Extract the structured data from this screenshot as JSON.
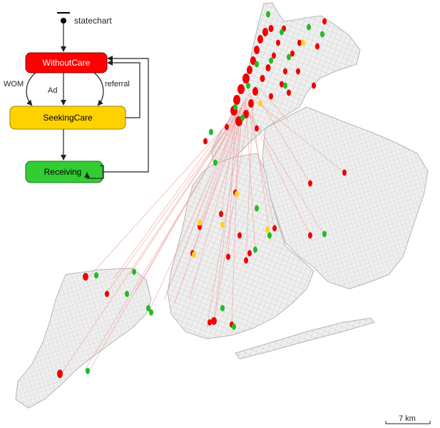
{
  "statechart": {
    "title": "statechart",
    "states": [
      {
        "id": "without",
        "label": "WithoutCare",
        "color": "#ff0000",
        "text_color": "#ffffff"
      },
      {
        "id": "seeking",
        "label": "SeekingCare",
        "color": "#ffd200",
        "text_color": "#000000"
      },
      {
        "id": "receiving",
        "label": "Receiving",
        "color": "#33cc33",
        "text_color": "#000000"
      }
    ],
    "transitions": {
      "wom": "WOM",
      "ad": "Ad",
      "referral": "referral"
    }
  },
  "map": {
    "colors": {
      "land": "#ececec",
      "streets": "#bdbdbd",
      "links": "#f4a0a0",
      "without_care": "#ee0000",
      "seeking_care": "#ffd21f",
      "receiving": "#22bb22"
    },
    "scale_label": "7 km"
  }
}
